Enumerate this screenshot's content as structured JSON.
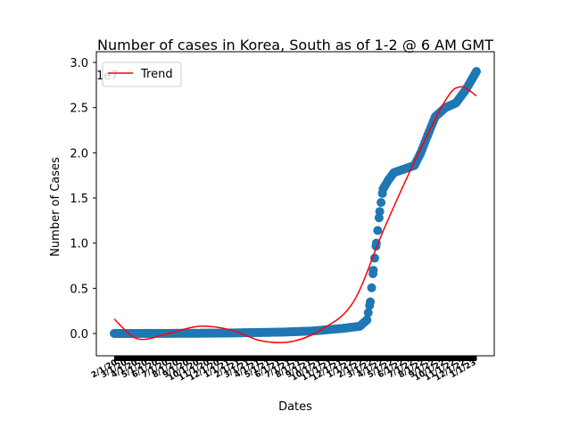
{
  "chart_data": {
    "type": "scatter",
    "title": "Number of cases in Korea, South as of 1-2 @ 6 AM GMT",
    "xlabel": "Dates",
    "ylabel": "Number of Cases",
    "y_offset_label": "1e7",
    "ylim": [
      -0.25,
      3.05
    ],
    "yticks": [
      0.0,
      0.5,
      1.0,
      1.5,
      2.0,
      2.5,
      3.0
    ],
    "ytick_labels": [
      "0.0",
      "0.5",
      "1.0",
      "1.5",
      "2.0",
      "2.5",
      "3.0"
    ],
    "x_start": "2020-01-22",
    "x_end": "2023-01-01",
    "grid": false,
    "legend": {
      "position": "top-left",
      "entries": [
        {
          "name": "Trend",
          "color": "#ff0000"
        }
      ]
    },
    "series": [
      {
        "kind": "scatter",
        "color": "#1f77b4",
        "x": [
          "2020-01-22",
          "2020-06-01",
          "2020-12-01",
          "2021-06-01",
          "2021-09-01",
          "2021-12-01",
          "2022-01-20",
          "2022-02-10",
          "2022-02-20",
          "2022-03-01",
          "2022-03-10",
          "2022-03-20",
          "2022-03-30",
          "2022-04-15",
          "2022-05-01",
          "2022-06-01",
          "2022-07-01",
          "2022-07-20",
          "2022-08-10",
          "2022-09-01",
          "2022-10-01",
          "2022-11-01",
          "2022-12-01",
          "2023-01-01"
        ],
        "values": [
          0.0,
          0.001,
          0.004,
          0.015,
          0.027,
          0.057,
          0.08,
          0.15,
          0.35,
          0.7,
          1.0,
          1.35,
          1.6,
          1.7,
          1.78,
          1.82,
          1.86,
          2.0,
          2.2,
          2.4,
          2.5,
          2.55,
          2.7,
          2.9
        ]
      },
      {
        "kind": "line",
        "name": "Trend",
        "color": "#ff0000",
        "x": [
          "2020-01-22",
          "2020-04-01",
          "2020-07-01",
          "2020-10-01",
          "2021-01-01",
          "2021-04-01",
          "2021-07-01",
          "2021-10-01",
          "2022-01-01",
          "2022-04-01",
          "2022-07-01",
          "2022-10-01",
          "2022-11-15",
          "2023-01-01"
        ],
        "values": [
          0.16,
          -0.06,
          0.0,
          0.08,
          0.04,
          -0.08,
          -0.09,
          0.05,
          0.35,
          1.15,
          1.9,
          2.58,
          2.73,
          2.63
        ]
      }
    ]
  }
}
